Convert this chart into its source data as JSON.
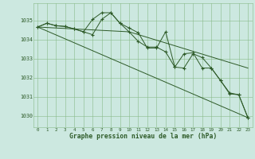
{
  "title": "Graphe pression niveau de la mer (hPa)",
  "background_color": "#cce8e0",
  "grid_color": "#88bb88",
  "line_color": "#2d5a27",
  "xlim": [
    -0.5,
    23.5
  ],
  "ylim": [
    1029.4,
    1035.9
  ],
  "yticks": [
    1030,
    1031,
    1032,
    1033,
    1034,
    1035
  ],
  "xticks": [
    0,
    1,
    2,
    3,
    4,
    5,
    6,
    7,
    8,
    9,
    10,
    11,
    12,
    13,
    14,
    15,
    16,
    17,
    18,
    19,
    20,
    21,
    22,
    23
  ],
  "line1": {
    "x": [
      0,
      1,
      2,
      3,
      4,
      5,
      6,
      7,
      8,
      9,
      10,
      11,
      12,
      13,
      14,
      15,
      16,
      17,
      18,
      19,
      20,
      21,
      22,
      23
    ],
    "y": [
      1034.65,
      1034.85,
      1034.72,
      1034.68,
      1034.55,
      1034.4,
      1034.25,
      1035.05,
      1035.4,
      1034.85,
      1034.6,
      1034.35,
      1033.55,
      1033.55,
      1034.4,
      1032.55,
      1032.5,
      1033.25,
      1033.05,
      1032.5,
      1031.85,
      1031.15,
      1031.1,
      1029.9
    ]
  },
  "line2": {
    "x": [
      0,
      1,
      2,
      3,
      4,
      5,
      6,
      7,
      8,
      9,
      10,
      11,
      12,
      13,
      14,
      15,
      16,
      17,
      18,
      19,
      20,
      21,
      22,
      23
    ],
    "y": [
      1034.65,
      1034.85,
      1034.72,
      1034.68,
      1034.55,
      1034.4,
      1035.05,
      1035.4,
      1035.4,
      1034.85,
      1034.4,
      1033.9,
      1033.6,
      1033.6,
      1033.35,
      1032.55,
      1033.25,
      1033.3,
      1032.5,
      1032.5,
      1031.85,
      1031.2,
      1031.1,
      1029.9
    ]
  },
  "line3": {
    "x": [
      0,
      23
    ],
    "y": [
      1034.65,
      1029.9
    ]
  },
  "line4": {
    "x": [
      0,
      10,
      23
    ],
    "y": [
      1034.65,
      1034.4,
      1032.5
    ]
  }
}
